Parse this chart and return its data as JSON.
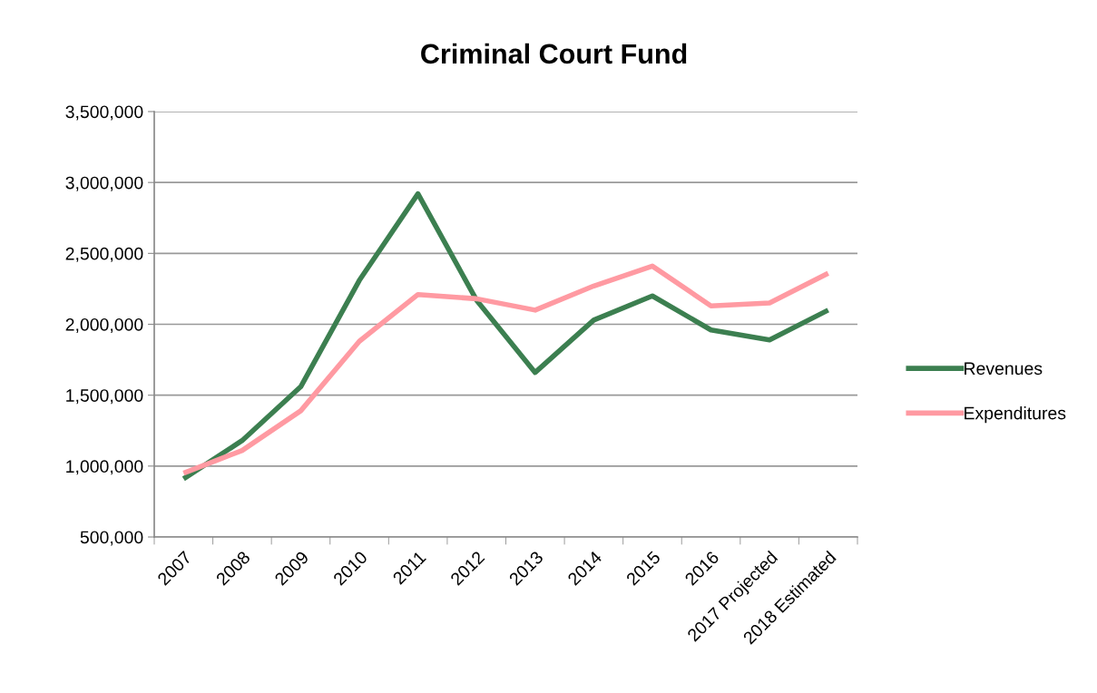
{
  "chart_data": {
    "type": "line",
    "title": "Criminal Court Fund",
    "categories": [
      "2007",
      "2008",
      "2009",
      "2010",
      "2011",
      "2012",
      "2013",
      "2014",
      "2015",
      "2016",
      "2017 Projected",
      "2018 Estimated"
    ],
    "series": [
      {
        "name": "Revenues",
        "color": "#3c7f50",
        "values": [
          910000,
          1180000,
          1560000,
          2310000,
          2920000,
          2170000,
          1660000,
          2030000,
          2200000,
          1960000,
          1890000,
          2100000
        ]
      },
      {
        "name": "Expenditures",
        "color": "#ff9aa2",
        "values": [
          950000,
          1110000,
          1390000,
          1880000,
          2210000,
          2180000,
          2100000,
          2270000,
          2410000,
          2130000,
          2150000,
          2360000
        ]
      }
    ],
    "ylim": [
      500000,
      3500000
    ],
    "yticks": [
      {
        "value": 500000,
        "label": "500,000"
      },
      {
        "value": 1000000,
        "label": "1,000,000"
      },
      {
        "value": 1500000,
        "label": "1,500,000"
      },
      {
        "value": 2000000,
        "label": "2,000,000"
      },
      {
        "value": 2500000,
        "label": "2,500,000"
      },
      {
        "value": 3000000,
        "label": "3,000,000"
      },
      {
        "value": 3500000,
        "label": "3,500,000"
      }
    ],
    "grid": "y",
    "legend": "right",
    "marker": "none",
    "line_style": "solid"
  }
}
